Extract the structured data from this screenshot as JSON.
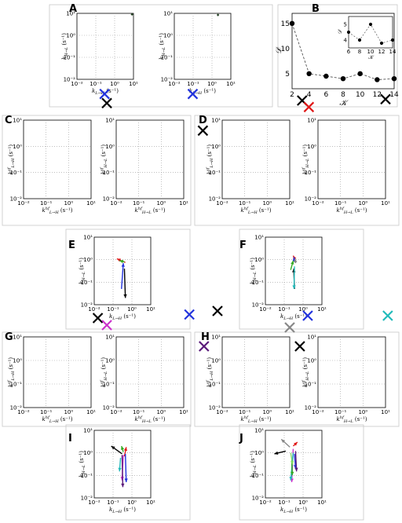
{
  "colors": {
    "dark_green": "#1f3d1f",
    "black": "#000000",
    "blue": "#2233dd",
    "red": "#e01818",
    "green": "#33aa22",
    "gray": "#888888",
    "cyan": "#22bbbb",
    "magenta": "#cc33cc",
    "purple": "#5a1a7a",
    "orange": "#e88a10",
    "light_green": "#88dd66"
  },
  "chart_data": [
    {
      "id": "B",
      "type": "line",
      "xlabel": "𝒦",
      "ylabel": "𝒟",
      "x": [
        2,
        4,
        6,
        8,
        10,
        12,
        14
      ],
      "y": [
        15,
        5,
        4.5,
        4,
        5,
        3.8,
        4
      ],
      "xticks": [
        "2",
        "4",
        "6",
        "8",
        "10",
        "12",
        "14"
      ],
      "yticks": [
        "5",
        "10",
        "15"
      ],
      "inset": {
        "xlabel": "𝒦",
        "ylabel": "𝒟",
        "x": [
          6,
          8,
          10,
          12,
          14
        ],
        "y": [
          4.5,
          4,
          5,
          3.8,
          4
        ],
        "xticks": [
          "6",
          "8",
          "10",
          "12",
          "14"
        ],
        "yticks": [
          "4",
          "5"
        ]
      }
    },
    {
      "id": "D",
      "type": "scatter",
      "xlabel": "k_{L→H} (s⁻¹)",
      "ylabel": "k_{H→L} (s⁻¹)",
      "arrows": [
        {
          "color": "red",
          "from": [
            0.45,
            0.75
          ],
          "to": [
            0.16,
            1.1
          ]
        },
        {
          "color": "green",
          "from": [
            0.4,
            0.8
          ],
          "to": [
            0.22,
            0.9
          ]
        },
        {
          "color": "blue",
          "from": [
            0.28,
            0.05
          ],
          "to": [
            0.35,
            0.7
          ]
        },
        {
          "color": "black",
          "from": [
            0.4,
            0.4
          ],
          "to": [
            0.45,
            0.02
          ]
        }
      ]
    },
    {
      "id": "F",
      "type": "scatter",
      "xlabel": "k_{L→H} (s⁻¹)",
      "ylabel": "k_{H→L} (s⁻¹)",
      "arrows": [
        {
          "color": "black",
          "from": [
            0.35,
            0.05
          ],
          "to": [
            0.32,
            0.4
          ]
        },
        {
          "color": "red",
          "from": [
            0.4,
            0.9
          ],
          "to": [
            0.3,
            1.5
          ]
        },
        {
          "color": "blue",
          "from": [
            0.35,
            0.8
          ],
          "to": [
            0.33,
            1.3
          ]
        },
        {
          "color": "green",
          "from": [
            0.22,
            0.35
          ],
          "to": [
            0.3,
            0.9
          ]
        },
        {
          "color": "gray",
          "from": [
            0.4,
            0.7
          ],
          "to": [
            0.38,
            1.1
          ]
        },
        {
          "color": "cyan",
          "from": [
            0.35,
            0.5
          ],
          "to": [
            0.33,
            0.05
          ]
        }
      ]
    },
    {
      "id": "H",
      "type": "scatter",
      "xlabel": "k_{L→H} (s⁻¹)",
      "ylabel": "k_{H→L} (s⁻¹)",
      "arrows": [
        {
          "color": "black",
          "from": [
            0.3,
            0.9
          ],
          "to": [
            0.08,
            2
          ]
        },
        {
          "color": "green",
          "from": [
            0.35,
            1.1
          ],
          "to": [
            0.28,
            2
          ]
        },
        {
          "color": "red",
          "from": [
            0.4,
            0.7
          ],
          "to": [
            0.5,
            1.8
          ]
        },
        {
          "color": "magenta",
          "from": [
            0.35,
            0.8
          ],
          "to": [
            0.3,
            0.06
          ]
        },
        {
          "color": "purple",
          "from": [
            0.3,
            0.8
          ],
          "to": [
            0.33,
            0.03
          ]
        },
        {
          "color": "blue",
          "from": [
            0.45,
            0.9
          ],
          "to": [
            0.5,
            0.05
          ]
        },
        {
          "color": "cyan",
          "from": [
            0.25,
            0.6
          ],
          "to": [
            0.22,
            0.15
          ]
        }
      ]
    },
    {
      "id": "J",
      "type": "scatter",
      "xlabel": "k_{L→H} (s⁻¹)",
      "ylabel": "k_{H→L} (s⁻¹)",
      "arrows": [
        {
          "color": "black",
          "from": [
            0.12,
            1.2
          ],
          "to": [
            0.03,
            0.9
          ]
        },
        {
          "color": "gray",
          "from": [
            0.2,
            1.8
          ],
          "to": [
            0.07,
            4
          ]
        },
        {
          "color": "red",
          "from": [
            0.3,
            2
          ],
          "to": [
            0.5,
            3
          ]
        },
        {
          "color": "magenta",
          "from": [
            0.3,
            1.5
          ],
          "to": [
            0.25,
            0.05
          ]
        },
        {
          "color": "cyan",
          "from": [
            0.3,
            1
          ],
          "to": [
            0.22,
            0.06
          ]
        },
        {
          "color": "blue",
          "from": [
            0.35,
            0.9
          ],
          "to": [
            0.4,
            0.2
          ]
        },
        {
          "color": "purple",
          "from": [
            0.4,
            1.2
          ],
          "to": [
            0.45,
            0.15
          ]
        },
        {
          "color": "green",
          "from": [
            0.25,
            0.5
          ],
          "to": [
            0.27,
            0.1
          ]
        },
        {
          "color": "light_green",
          "from": [
            0.22,
            1
          ],
          "to": [
            0.28,
            0.3
          ]
        }
      ]
    }
  ],
  "scatter_panels": [
    {
      "id": "A1",
      "xlabel": "k_{L→H} (s⁻¹)",
      "ylabel": "k_{H→L} (s⁻¹)"
    },
    {
      "id": "A2",
      "xlabel": "k_{L→H} (s⁻¹)",
      "ylabel": "k_{H→L} (s⁻¹)"
    },
    {
      "id": "C1",
      "xlabel": "k^{hf}_{L→H} (s⁻¹)",
      "ylabel": "k^{sf}_{L→H} (s⁻¹)"
    },
    {
      "id": "C2",
      "xlabel": "k^{hf}_{H→L} (s⁻¹)",
      "ylabel": "k^{sf}_{H→L} (s⁻¹)"
    },
    {
      "id": "E1",
      "xlabel": "k^{hf}_{L→H} (s⁻¹)",
      "ylabel": "k^{sf}_{L→H} (s⁻¹)"
    },
    {
      "id": "E2",
      "xlabel": "k^{hf}_{H→L} (s⁻¹)",
      "ylabel": "k^{sf}_{H→L} (s⁻¹)"
    },
    {
      "id": "G1",
      "xlabel": "k^{hf}_{L→H} (s⁻¹)",
      "ylabel": "k^{sf}_{L→H} (s⁻¹)"
    },
    {
      "id": "G2",
      "xlabel": "k^{hf}_{H→L} (s⁻¹)",
      "ylabel": "k^{sf}_{H→L} (s⁻¹)"
    },
    {
      "id": "I1",
      "xlabel": "k^{hf}_{L→H} (s⁻¹)",
      "ylabel": "k^{sf}_{L→H} (s⁻¹)"
    },
    {
      "id": "I2",
      "xlabel": "k^{hf}_{H→L} (s⁻¹)",
      "ylabel": "k^{sf}_{H→L} (s⁻¹)"
    }
  ],
  "panel_letters": [
    "A",
    "B",
    "C",
    "D",
    "E",
    "F",
    "G",
    "H",
    "I",
    "J"
  ],
  "log_ticks": [
    "10⁻²",
    "10⁻¹",
    "10⁰",
    "10¹"
  ]
}
